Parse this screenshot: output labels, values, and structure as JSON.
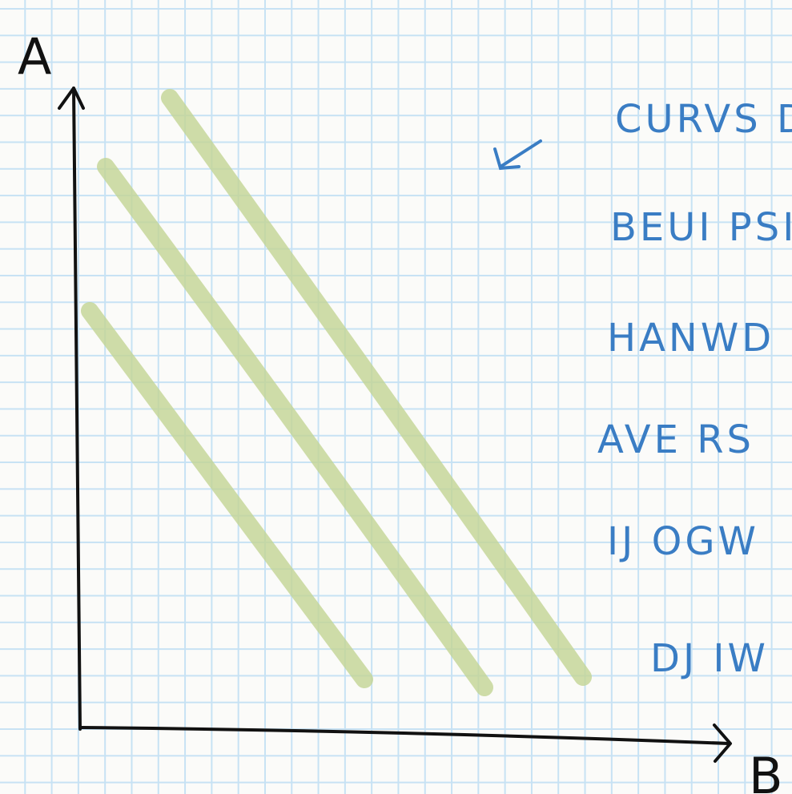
{
  "axes": {
    "y_label": "A",
    "x_label": "B"
  },
  "notes": [
    "CURVS D",
    "BEUI PSI",
    "HANWD",
    "AVE RS",
    "IJ OGW",
    "DJ IW"
  ]
}
